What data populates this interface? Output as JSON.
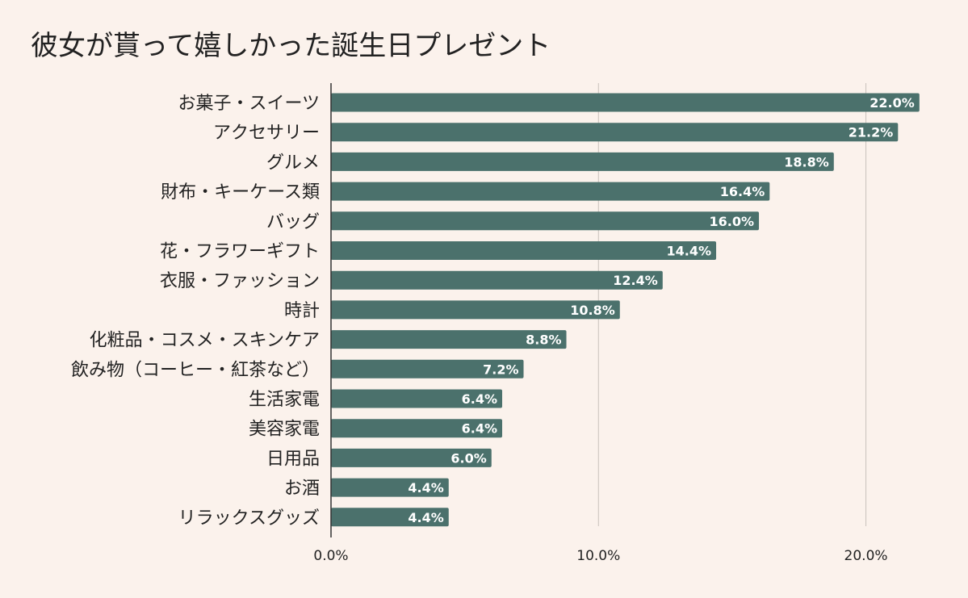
{
  "chart_data": {
    "type": "bar",
    "orientation": "horizontal",
    "title": "彼女が貰って嬉しかった誕生日プレゼント",
    "categories": [
      "お菓子・スイーツ",
      "アクセサリー",
      "グルメ",
      "財布・キーケース類",
      "バッグ",
      "花・フラワーギフト",
      "衣服・ファッション",
      "時計",
      "化粧品・コスメ・スキンケア",
      "飲み物（コーヒー・紅茶など）",
      "生活家電",
      "美容家電",
      "日用品",
      "お酒",
      "リラックスグッズ"
    ],
    "values": [
      22.0,
      21.2,
      18.8,
      16.4,
      16.0,
      14.4,
      12.4,
      10.8,
      8.8,
      7.2,
      6.4,
      6.4,
      6.0,
      4.4,
      4.4
    ],
    "value_labels": [
      "22.0%",
      "21.2%",
      "18.8%",
      "16.4%",
      "16.0%",
      "14.4%",
      "12.4%",
      "10.8%",
      "8.8%",
      "7.2%",
      "6.4%",
      "6.4%",
      "6.0%",
      "4.4%",
      "4.4%"
    ],
    "xlim": [
      0,
      22.7
    ],
    "ticks": [
      0,
      10,
      20
    ],
    "tick_labels": [
      "0.0%",
      "10.0%",
      "20.0%"
    ],
    "grid": true,
    "legend": "none",
    "colors": {
      "bar": "#4b716c",
      "background": "#fbf2ec",
      "grid": "#c9c1bb",
      "axis": "#333333",
      "text": "#222222",
      "data_label": "#ffffff"
    }
  }
}
